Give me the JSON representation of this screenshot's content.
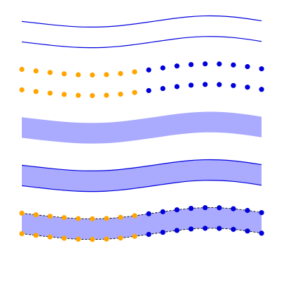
{
  "canvas": {
    "background": "#ffffff"
  },
  "bands": {
    "x": [
      0,
      1,
      2,
      3,
      4,
      5,
      6,
      7,
      8,
      9,
      10,
      11,
      12,
      13,
      14,
      15,
      16,
      17
    ],
    "upper": [
      1.6,
      1.34,
      1.08,
      0.86,
      0.7,
      0.66,
      0.72,
      0.9,
      1.18,
      1.5,
      1.84,
      2.16,
      2.4,
      2.52,
      2.5,
      2.34,
      2.06,
      1.7
    ],
    "lower": [
      0.3,
      0.02,
      -0.24,
      -0.46,
      -0.62,
      -0.66,
      -0.6,
      -0.42,
      -0.14,
      0.18,
      0.52,
      0.84,
      1.08,
      1.2,
      1.18,
      1.02,
      0.74,
      0.38
    ],
    "first_segment_count": 9
  },
  "colors": {
    "line": "#0000dd",
    "fill": "#aaaaff",
    "marker_first": "#ffa500",
    "marker_second": "#0000dd",
    "dash": "#000000"
  },
  "panels": [
    {
      "style": "lines"
    },
    {
      "style": "markers"
    },
    {
      "style": "fill"
    },
    {
      "style": "fill-lines"
    },
    {
      "style": "fill-markers-dashed"
    }
  ]
}
